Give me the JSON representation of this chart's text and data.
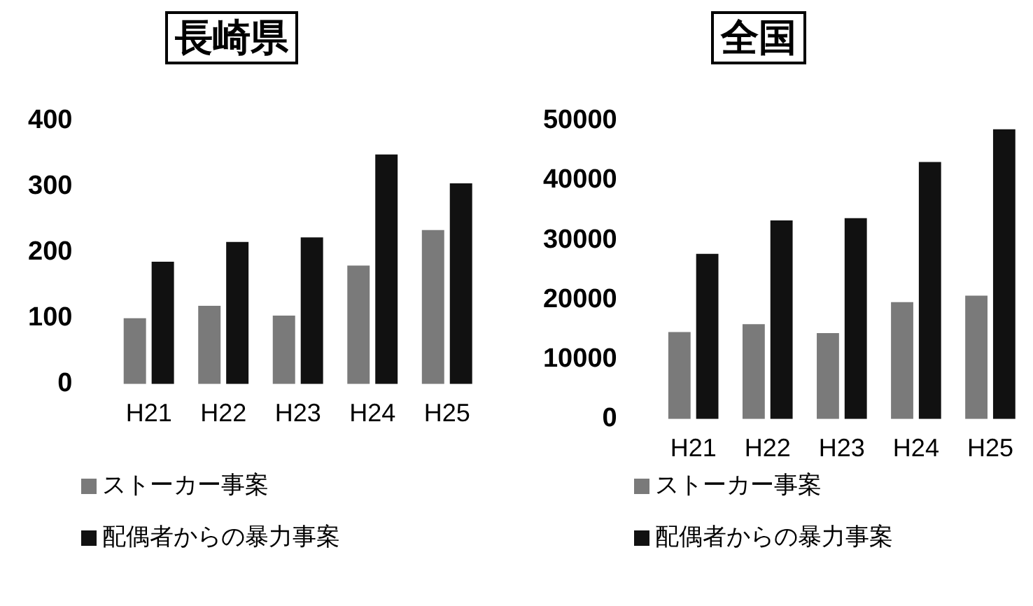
{
  "chart_data": [
    {
      "type": "bar",
      "title": "長崎県",
      "categories": [
        "H21",
        "H22",
        "H23",
        "H24",
        "H25"
      ],
      "series": [
        {
          "name": "ストーカー事案",
          "color": "#7a7a7a",
          "values": [
            100,
            119,
            104,
            180,
            234
          ]
        },
        {
          "name": "配偶者からの暴力事案",
          "color": "#111111",
          "values": [
            186,
            216,
            223,
            349,
            305
          ]
        }
      ],
      "ylim": [
        0,
        400
      ],
      "yticks": [
        0,
        100,
        200,
        300,
        400
      ],
      "grid": false,
      "legend": "bottom"
    },
    {
      "type": "bar",
      "title": "全国",
      "categories": [
        "H21",
        "H22",
        "H23",
        "H24",
        "H25"
      ],
      "series": [
        {
          "name": "ストーカー事案",
          "color": "#7a7a7a",
          "values": [
            14600,
            15900,
            14400,
            19600,
            20700
          ]
        },
        {
          "name": "配偶者からの暴力事案",
          "color": "#111111",
          "values": [
            27700,
            33300,
            33700,
            43100,
            48600
          ]
        }
      ],
      "ylim": [
        0,
        50000
      ],
      "yticks": [
        0,
        10000,
        20000,
        30000,
        40000,
        50000
      ],
      "grid": false,
      "legend": "bottom"
    }
  ]
}
